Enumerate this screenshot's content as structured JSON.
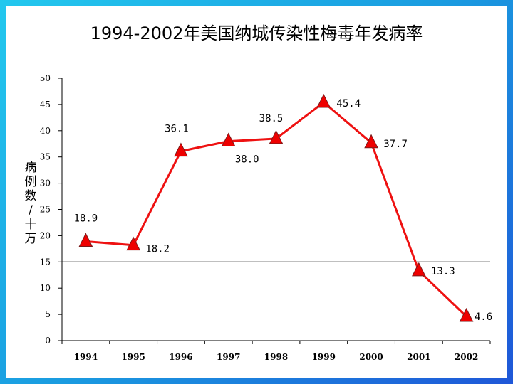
{
  "chart_data": {
    "type": "line",
    "title": "1994-2002年美国纳城传染性梅毒年发病率",
    "ylabel": "病例数/十万",
    "xlabel": "",
    "categories": [
      "1994",
      "1995",
      "1996",
      "1997",
      "1998",
      "1999",
      "2000",
      "2001",
      "2002"
    ],
    "series": [
      {
        "values": [
          18.9,
          18.2,
          36.1,
          38.0,
          38.5,
          45.4,
          37.7,
          13.3,
          4.6
        ]
      }
    ],
    "data_labels": [
      "18.9",
      "18.2",
      "36.1",
      "38.0",
      "38.5",
      "45.4",
      "37.7",
      "13.3",
      "4.6"
    ],
    "ylim": [
      0,
      50
    ],
    "yticks": [
      "0",
      "5",
      "10",
      "15",
      "20",
      "25",
      "30",
      "35",
      "40",
      "45",
      "50"
    ],
    "reference_line": 15,
    "marker": "triangle",
    "line_color": "#ee1111",
    "marker_color": "#ee0000",
    "grid": false,
    "legend": "none"
  }
}
